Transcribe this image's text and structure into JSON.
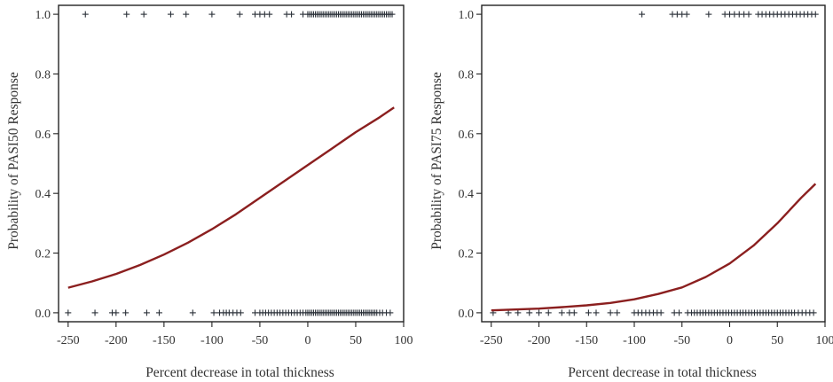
{
  "chart_data": [
    {
      "type": "scatter",
      "xlabel": "Percent decrease in total thickness",
      "ylabel": "Probability of PASI50 Response",
      "xlim": [
        -260,
        100
      ],
      "ylim": [
        -0.03,
        1.03
      ],
      "xticks": [
        "-250",
        "-200",
        "-150",
        "-100",
        "-50",
        "0",
        "50",
        "100"
      ],
      "yticks": [
        "0.0",
        "0.2",
        "0.4",
        "0.6",
        "0.8",
        "1.0"
      ],
      "xtick_values": [
        -250,
        -200,
        -150,
        -100,
        -50,
        0,
        50,
        100
      ],
      "ytick_values": [
        0,
        0.2,
        0.4,
        0.6,
        0.8,
        1.0
      ],
      "series": [
        {
          "kind": "points",
          "marker": "+",
          "y1_x": [
            -232,
            -189,
            -171,
            -143,
            -127,
            -100,
            -71,
            -55,
            -50,
            -45,
            -40,
            -22,
            -17,
            -5,
            0,
            2,
            4,
            6,
            8,
            10,
            12,
            14,
            16,
            18,
            20,
            22,
            24,
            26,
            28,
            30,
            32,
            34,
            36,
            38,
            40,
            42,
            44,
            46,
            48,
            50,
            52,
            54,
            56,
            58,
            60,
            62,
            64,
            66,
            68,
            70,
            72,
            74,
            76,
            78,
            80,
            82,
            84,
            86,
            88
          ],
          "y0_x": [
            -250,
            -222,
            -204,
            -200,
            -190,
            -168,
            -155,
            -120,
            -98,
            -92,
            -88,
            -85,
            -82,
            -78,
            -74,
            -70,
            -55,
            -50,
            -47,
            -44,
            -41,
            -38,
            -35,
            -32,
            -29,
            -26,
            -23,
            -20,
            -17,
            -14,
            -11,
            -8,
            -5,
            -2,
            0,
            2,
            4,
            6,
            8,
            10,
            12,
            14,
            16,
            18,
            20,
            22,
            24,
            26,
            28,
            30,
            32,
            34,
            36,
            38,
            40,
            42,
            44,
            46,
            48,
            50,
            52,
            54,
            56,
            58,
            60,
            62,
            64,
            66,
            68,
            70,
            72,
            75,
            78,
            82,
            86
          ]
        },
        {
          "kind": "curve",
          "x": [
            -250,
            -225,
            -200,
            -175,
            -150,
            -125,
            -100,
            -75,
            -50,
            -25,
            0,
            25,
            50,
            75,
            90
          ],
          "y": [
            0.084,
            0.105,
            0.13,
            0.16,
            0.195,
            0.235,
            0.28,
            0.33,
            0.385,
            0.44,
            0.495,
            0.55,
            0.605,
            0.655,
            0.688
          ]
        }
      ]
    },
    {
      "type": "scatter",
      "xlabel": "Percent decrease in total thickness",
      "ylabel": "Probability of PASI75 Response",
      "xlim": [
        -260,
        100
      ],
      "ylim": [
        -0.03,
        1.03
      ],
      "xticks": [
        "-250",
        "-200",
        "-150",
        "-100",
        "-50",
        "0",
        "50",
        "100"
      ],
      "yticks": [
        "0.0",
        "0.2",
        "0.4",
        "0.6",
        "0.8",
        "1.0"
      ],
      "xtick_values": [
        -250,
        -200,
        -150,
        -100,
        -50,
        0,
        50,
        100
      ],
      "ytick_values": [
        0,
        0.2,
        0.4,
        0.6,
        0.8,
        1.0
      ],
      "series": [
        {
          "kind": "points",
          "marker": "+",
          "y1_x": [
            -92,
            -60,
            -55,
            -50,
            -45,
            -22,
            -5,
            0,
            5,
            10,
            15,
            20,
            30,
            34,
            38,
            42,
            46,
            50,
            54,
            58,
            62,
            66,
            70,
            74,
            78,
            82,
            86,
            90
          ],
          "y0_x": [
            -248,
            -232,
            -222,
            -210,
            -200,
            -190,
            -176,
            -168,
            -163,
            -148,
            -140,
            -125,
            -118,
            -100,
            -96,
            -92,
            -88,
            -84,
            -80,
            -76,
            -72,
            -58,
            -53,
            -44,
            -40,
            -37,
            -34,
            -31,
            -28,
            -25,
            -22,
            -19,
            -16,
            -13,
            -10,
            -7,
            -4,
            -1,
            2,
            5,
            8,
            11,
            14,
            17,
            20,
            23,
            26,
            29,
            32,
            35,
            38,
            41,
            44,
            47,
            50,
            53,
            56,
            59,
            62,
            65,
            68,
            72,
            76,
            80,
            84,
            88
          ]
        },
        {
          "kind": "curve",
          "x": [
            -250,
            -225,
            -200,
            -175,
            -150,
            -125,
            -100,
            -75,
            -50,
            -25,
            0,
            25,
            50,
            75,
            90
          ],
          "y": [
            0.008,
            0.011,
            0.014,
            0.019,
            0.025,
            0.033,
            0.045,
            0.063,
            0.085,
            0.12,
            0.165,
            0.225,
            0.3,
            0.385,
            0.432
          ]
        }
      ]
    }
  ]
}
